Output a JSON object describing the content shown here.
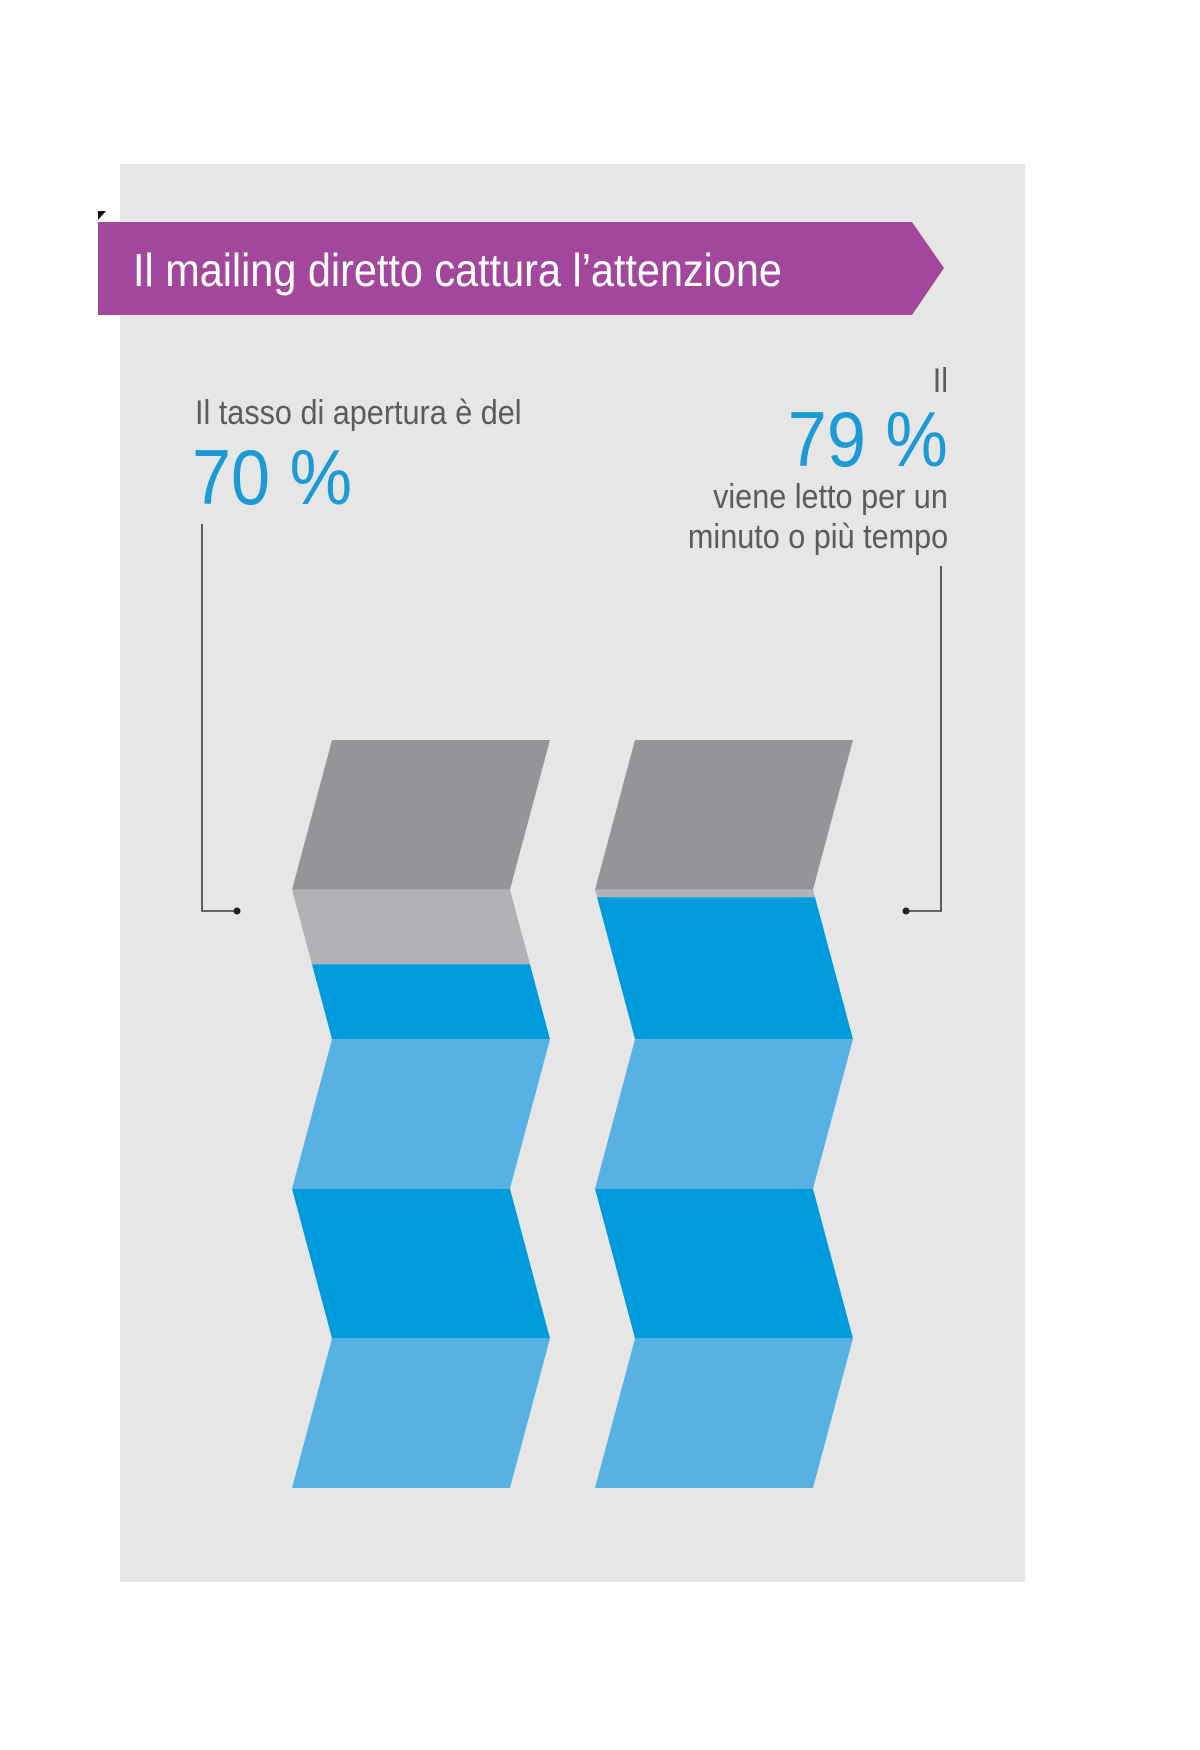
{
  "title": "Il mailing diretto cattura l’attenzione",
  "colors": {
    "panel": "#e6e6e7",
    "banner": "#a2479b",
    "dark_gray": "#949598",
    "light_gray": "#b1b2b5",
    "light_blue": "#58b1e3",
    "blue": "#009bdc",
    "accent_text": "#1b9ad6",
    "body_text": "#5b5b5d"
  },
  "left_callout": {
    "label": "Il tasso di apertura è del",
    "value": "70 %"
  },
  "right_callout": {
    "prefix": "Il",
    "value": "79 %",
    "line1": "viene letto per un",
    "line2": "minuto o più tempo"
  },
  "chart_data": {
    "type": "bar",
    "title": "Il mailing diretto cattura l’attenzione",
    "categories": [
      "Il tasso di apertura è del",
      "viene letto per un minuto o più tempo"
    ],
    "values": [
      70,
      79
    ],
    "unit": "%",
    "ylim": [
      0,
      100
    ],
    "xlabel": "",
    "ylabel": ""
  }
}
